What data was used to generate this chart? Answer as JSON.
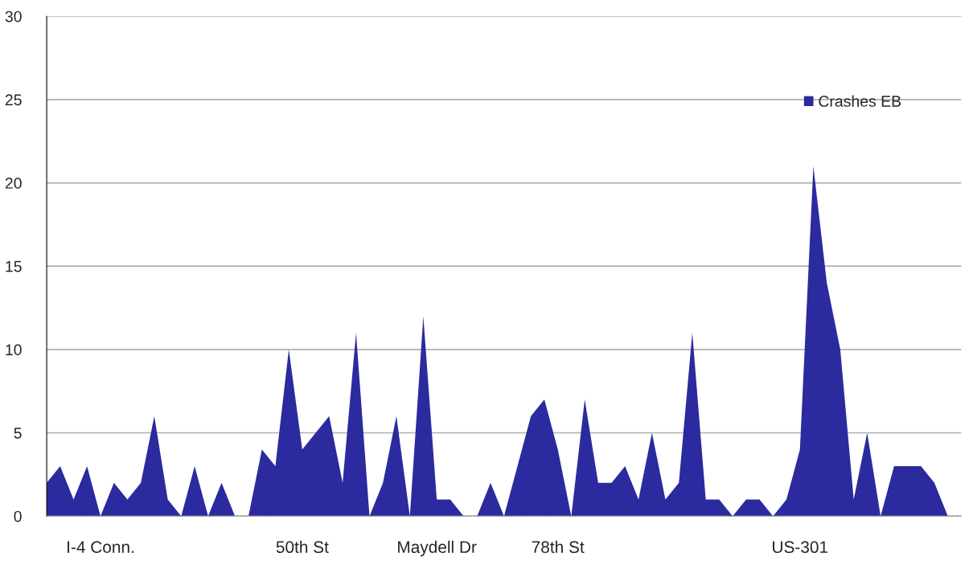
{
  "chart_data": {
    "type": "area",
    "categories": [
      null,
      null,
      null,
      null,
      "I-4 Conn.",
      null,
      null,
      null,
      null,
      null,
      null,
      null,
      null,
      null,
      null,
      null,
      null,
      null,
      null,
      "50th St",
      null,
      null,
      null,
      null,
      null,
      null,
      null,
      null,
      null,
      "Maydell Dr",
      null,
      null,
      null,
      null,
      null,
      null,
      null,
      null,
      "78th St",
      null,
      null,
      null,
      null,
      null,
      null,
      null,
      null,
      null,
      null,
      null,
      null,
      null,
      null,
      null,
      null,
      null,
      "US-301",
      null,
      null,
      null,
      null,
      null,
      null,
      null,
      null,
      null,
      null,
      null
    ],
    "series": [
      {
        "name": "Crashes EB",
        "color": "#2b2a9e",
        "values": [
          2,
          3,
          1,
          3,
          0,
          2,
          1,
          2,
          6,
          1,
          0,
          3,
          0,
          2,
          0,
          0,
          4,
          3,
          10,
          4,
          5,
          6,
          2,
          11,
          0,
          2,
          6,
          0,
          12,
          1,
          1,
          0,
          0,
          2,
          0,
          3,
          6,
          7,
          4,
          0,
          7,
          2,
          2,
          3,
          1,
          5,
          1,
          2,
          11,
          1,
          1,
          0,
          1,
          1,
          0,
          1,
          4,
          21,
          14,
          10,
          1,
          5,
          0,
          3,
          3,
          3,
          2,
          0
        ]
      }
    ],
    "ylim": [
      0,
      30
    ],
    "yticks": [
      0,
      5,
      10,
      15,
      20,
      25,
      30
    ],
    "grid": "y",
    "legend": "top right"
  }
}
